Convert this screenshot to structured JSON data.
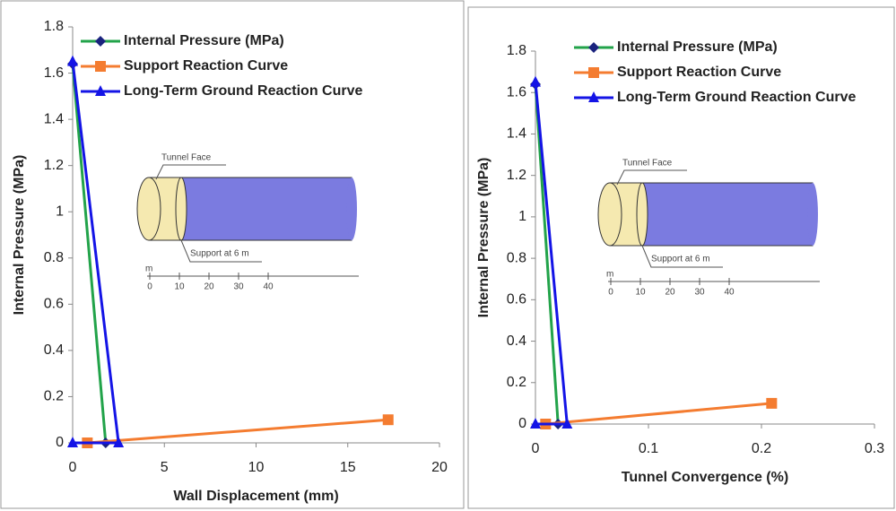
{
  "chart_data": [
    {
      "type": "line",
      "x_label": "Wall Displacement (mm)",
      "y_label": "Internal Pressure (MPa)",
      "xlim": [
        0,
        20
      ],
      "xticks": [
        0,
        5,
        10,
        15,
        20
      ],
      "ylim": [
        0,
        1.8
      ],
      "yticks": [
        0,
        0.2,
        0.4,
        0.6,
        0.8,
        1,
        1.2,
        1.4,
        1.6,
        1.8
      ],
      "series": [
        {
          "name": "Internal Pressure (MPa)",
          "color": "#22a34a",
          "marker": "diamond",
          "marker_color": "#1a237e",
          "x": [
            0,
            1.8
          ],
          "values": [
            1.64,
            0
          ]
        },
        {
          "name": "Support Reaction Curve",
          "color": "#f47c30",
          "marker": "square",
          "marker_color": "#f47c30",
          "x": [
            0.8,
            17.2
          ],
          "values": [
            0,
            0.1
          ]
        },
        {
          "name": "Long-Term Ground Reaction Curve",
          "color": "#1414e6",
          "marker": "triangle",
          "marker_color": "#1414e6",
          "x": [
            0,
            2.5,
            0
          ],
          "values": [
            1.65,
            0,
            0
          ]
        }
      ],
      "inset": {
        "labels": [
          "Tunnel Face",
          "Support at 6 m"
        ],
        "scale_unit": "m",
        "scale_ticks": [
          0,
          10,
          20,
          30,
          40
        ]
      }
    },
    {
      "type": "line",
      "x_label": "Tunnel Convergence (%)",
      "y_label": "Internal Pressure (MPa)",
      "xlim": [
        0,
        0.3
      ],
      "xticks": [
        0,
        0.1,
        0.2,
        0.3
      ],
      "ylim": [
        0,
        1.8
      ],
      "yticks": [
        0,
        0.2,
        0.4,
        0.6,
        0.8,
        1,
        1.2,
        1.4,
        1.6,
        1.8
      ],
      "series": [
        {
          "name": "Internal Pressure (MPa)",
          "color": "#22a34a",
          "marker": "diamond",
          "marker_color": "#1a237e",
          "x": [
            0,
            0.02
          ],
          "values": [
            1.64,
            0
          ]
        },
        {
          "name": "Support Reaction Curve",
          "color": "#f47c30",
          "marker": "square",
          "marker_color": "#f47c30",
          "x": [
            0.009,
            0.209
          ],
          "values": [
            0,
            0.1
          ]
        },
        {
          "name": "Long-Term Ground Reaction Curve",
          "color": "#1414e6",
          "marker": "triangle",
          "marker_color": "#1414e6",
          "x": [
            0,
            0.028,
            0
          ],
          "values": [
            1.65,
            0,
            0
          ]
        }
      ],
      "inset": {
        "labels": [
          "Tunnel Face",
          "Support at 6 m"
        ],
        "scale_unit": "m",
        "scale_ticks": [
          0,
          10,
          20,
          30,
          40
        ]
      }
    }
  ]
}
